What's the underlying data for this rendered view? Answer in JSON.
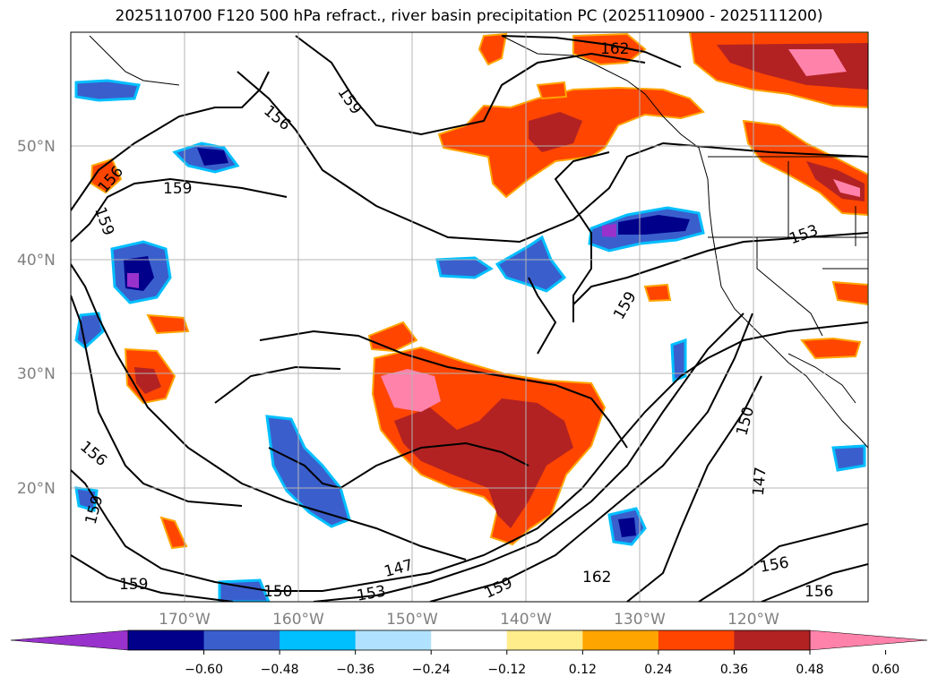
{
  "title": "2025110700 F120 500 hPa refract., river basin precipitation PC (2025110900 - 2025111200)",
  "map": {
    "lat_ticks": [
      "50°N",
      "40°N",
      "30°N",
      "20°N"
    ],
    "lon_ticks": [
      "170°W",
      "160°W",
      "150°W",
      "140°W",
      "130°W",
      "120°W"
    ],
    "extent": {
      "lon_min": -180,
      "lon_max": -110,
      "lat_min": 10,
      "lat_max": 60
    }
  },
  "contour_labels": [
    {
      "text": "162"
    },
    {
      "text": "159"
    },
    {
      "text": "156"
    },
    {
      "text": "156"
    },
    {
      "text": "159"
    },
    {
      "text": "159"
    },
    {
      "text": "153"
    },
    {
      "text": "159"
    },
    {
      "text": "150"
    },
    {
      "text": "156"
    },
    {
      "text": "159"
    },
    {
      "text": "147"
    },
    {
      "text": "147"
    },
    {
      "text": "162"
    },
    {
      "text": "156"
    },
    {
      "text": "159"
    },
    {
      "text": "150"
    },
    {
      "text": "153"
    },
    {
      "text": "159"
    },
    {
      "text": "156"
    }
  ],
  "colorbar": {
    "ticks": [
      "−0.60",
      "−0.48",
      "−0.36",
      "−0.24",
      "−0.12",
      "0.12",
      "0.24",
      "0.36",
      "0.48",
      "0.60"
    ],
    "colors": [
      "#9932cc",
      "#00008b",
      "#3a5fcd",
      "#00bfff",
      "#b0e2ff",
      "#ffffff",
      "#ffec8b",
      "#ffa500",
      "#ff4500",
      "#b22222",
      "#ff82ab"
    ]
  }
}
